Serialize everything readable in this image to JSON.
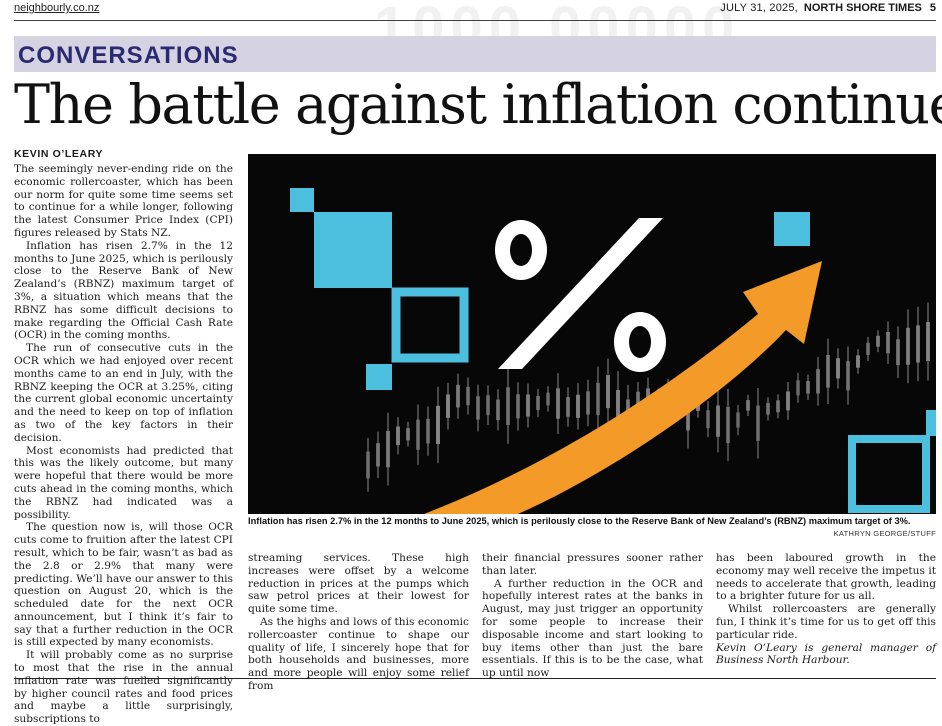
{
  "header": {
    "site": "neighbourly.co.nz",
    "date": "JULY 31, 2025,",
    "paper": "NORTH SHORE TIMES",
    "page": "5"
  },
  "section": "CONVERSATIONS",
  "article": {
    "headline": "The battle against inflation continues",
    "byline": "KEVIN O’LEARY",
    "col1": [
      "The seemingly never-ending ride on the economic rollercoaster, which has been our norm for quite some time seems set to continue for a while longer, following the latest Consumer Price Index (CPI) figures released by Stats NZ.",
      "Inflation has risen 2.7% in the 12 months to June 2025, which is perilously close to the Reserve Bank of New Zealand’s (RBNZ) maximum target of 3%, a situation which means that the RBNZ has some difficult decisions to make regarding the Official Cash Rate (OCR) in the coming months.",
      "The run of consecutive cuts in the OCR which we had enjoyed over recent months came to an end in July, with the RBNZ keeping the OCR at 3.25%, citing the current global economic uncertainty and the need to keep on top of inflation as two of the key factors in their decision.",
      "Most economists had predicted that this was the likely outcome, but many were hopeful that there would be more cuts ahead in the coming months, which the RBNZ had indicated was a possibility.",
      "The question now is, will those OCR cuts come to fruition after the latest CPI result, which to be fair, wasn’t as bad as the 2.8 or 2.9% that many were predicting. We’ll have our answer to this question on August 20, which is the scheduled date for the next OCR announcement, but I think it’s fair to say that a further reduction in the OCR is still expected by many economists.",
      "It will probably come as no surprise to most that the rise in the annual inflation rate was fuelled significantly by higher council rates and food prices and maybe a little surprisingly, subscriptions to"
    ],
    "col2": [
      "streaming services. These high increases were offset by a welcome reduction in prices at the pumps which saw petrol prices at their lowest for quite some time.",
      "As the highs and lows of this economic rollercoaster continue to shape our quality of life, I sincerely hope that for both households and businesses, more and more people will enjoy some relief from"
    ],
    "col3": [
      "their financial pressures sooner rather than later.",
      "A further reduction in the OCR and hopefully interest rates at the banks in August, may just trigger an opportunity for some people to increase their disposable income and start looking to buy items other than just the bare essentials. If this is to be the case, what up until now"
    ],
    "col4": [
      "has been laboured growth in the economy may well receive the impetus it needs to accelerate that growth, leading to a brighter future for us all.",
      "Whilst rollercoasters are generally fun, I think it’s time for us to get off this particular ride."
    ],
    "signature": "Kevin O’Leary is general manager of Business North Harbour.",
    "caption": "Inflation has risen 2.7% in the 12 months to June 2025, which is perilously close to the Reserve Bank of New Zealand’s (RBNZ) maximum target of 3%.",
    "credit": "KATHRYN GEORGE/STUFF",
    "image_symbol": "%",
    "colors": {
      "section_band": "#d5d2e2",
      "section_text": "#2a2a72",
      "photo_bg": "#070707",
      "square": "#4cbfdf",
      "arrow": "#f39a29",
      "candle": "#8a8a8a"
    }
  }
}
